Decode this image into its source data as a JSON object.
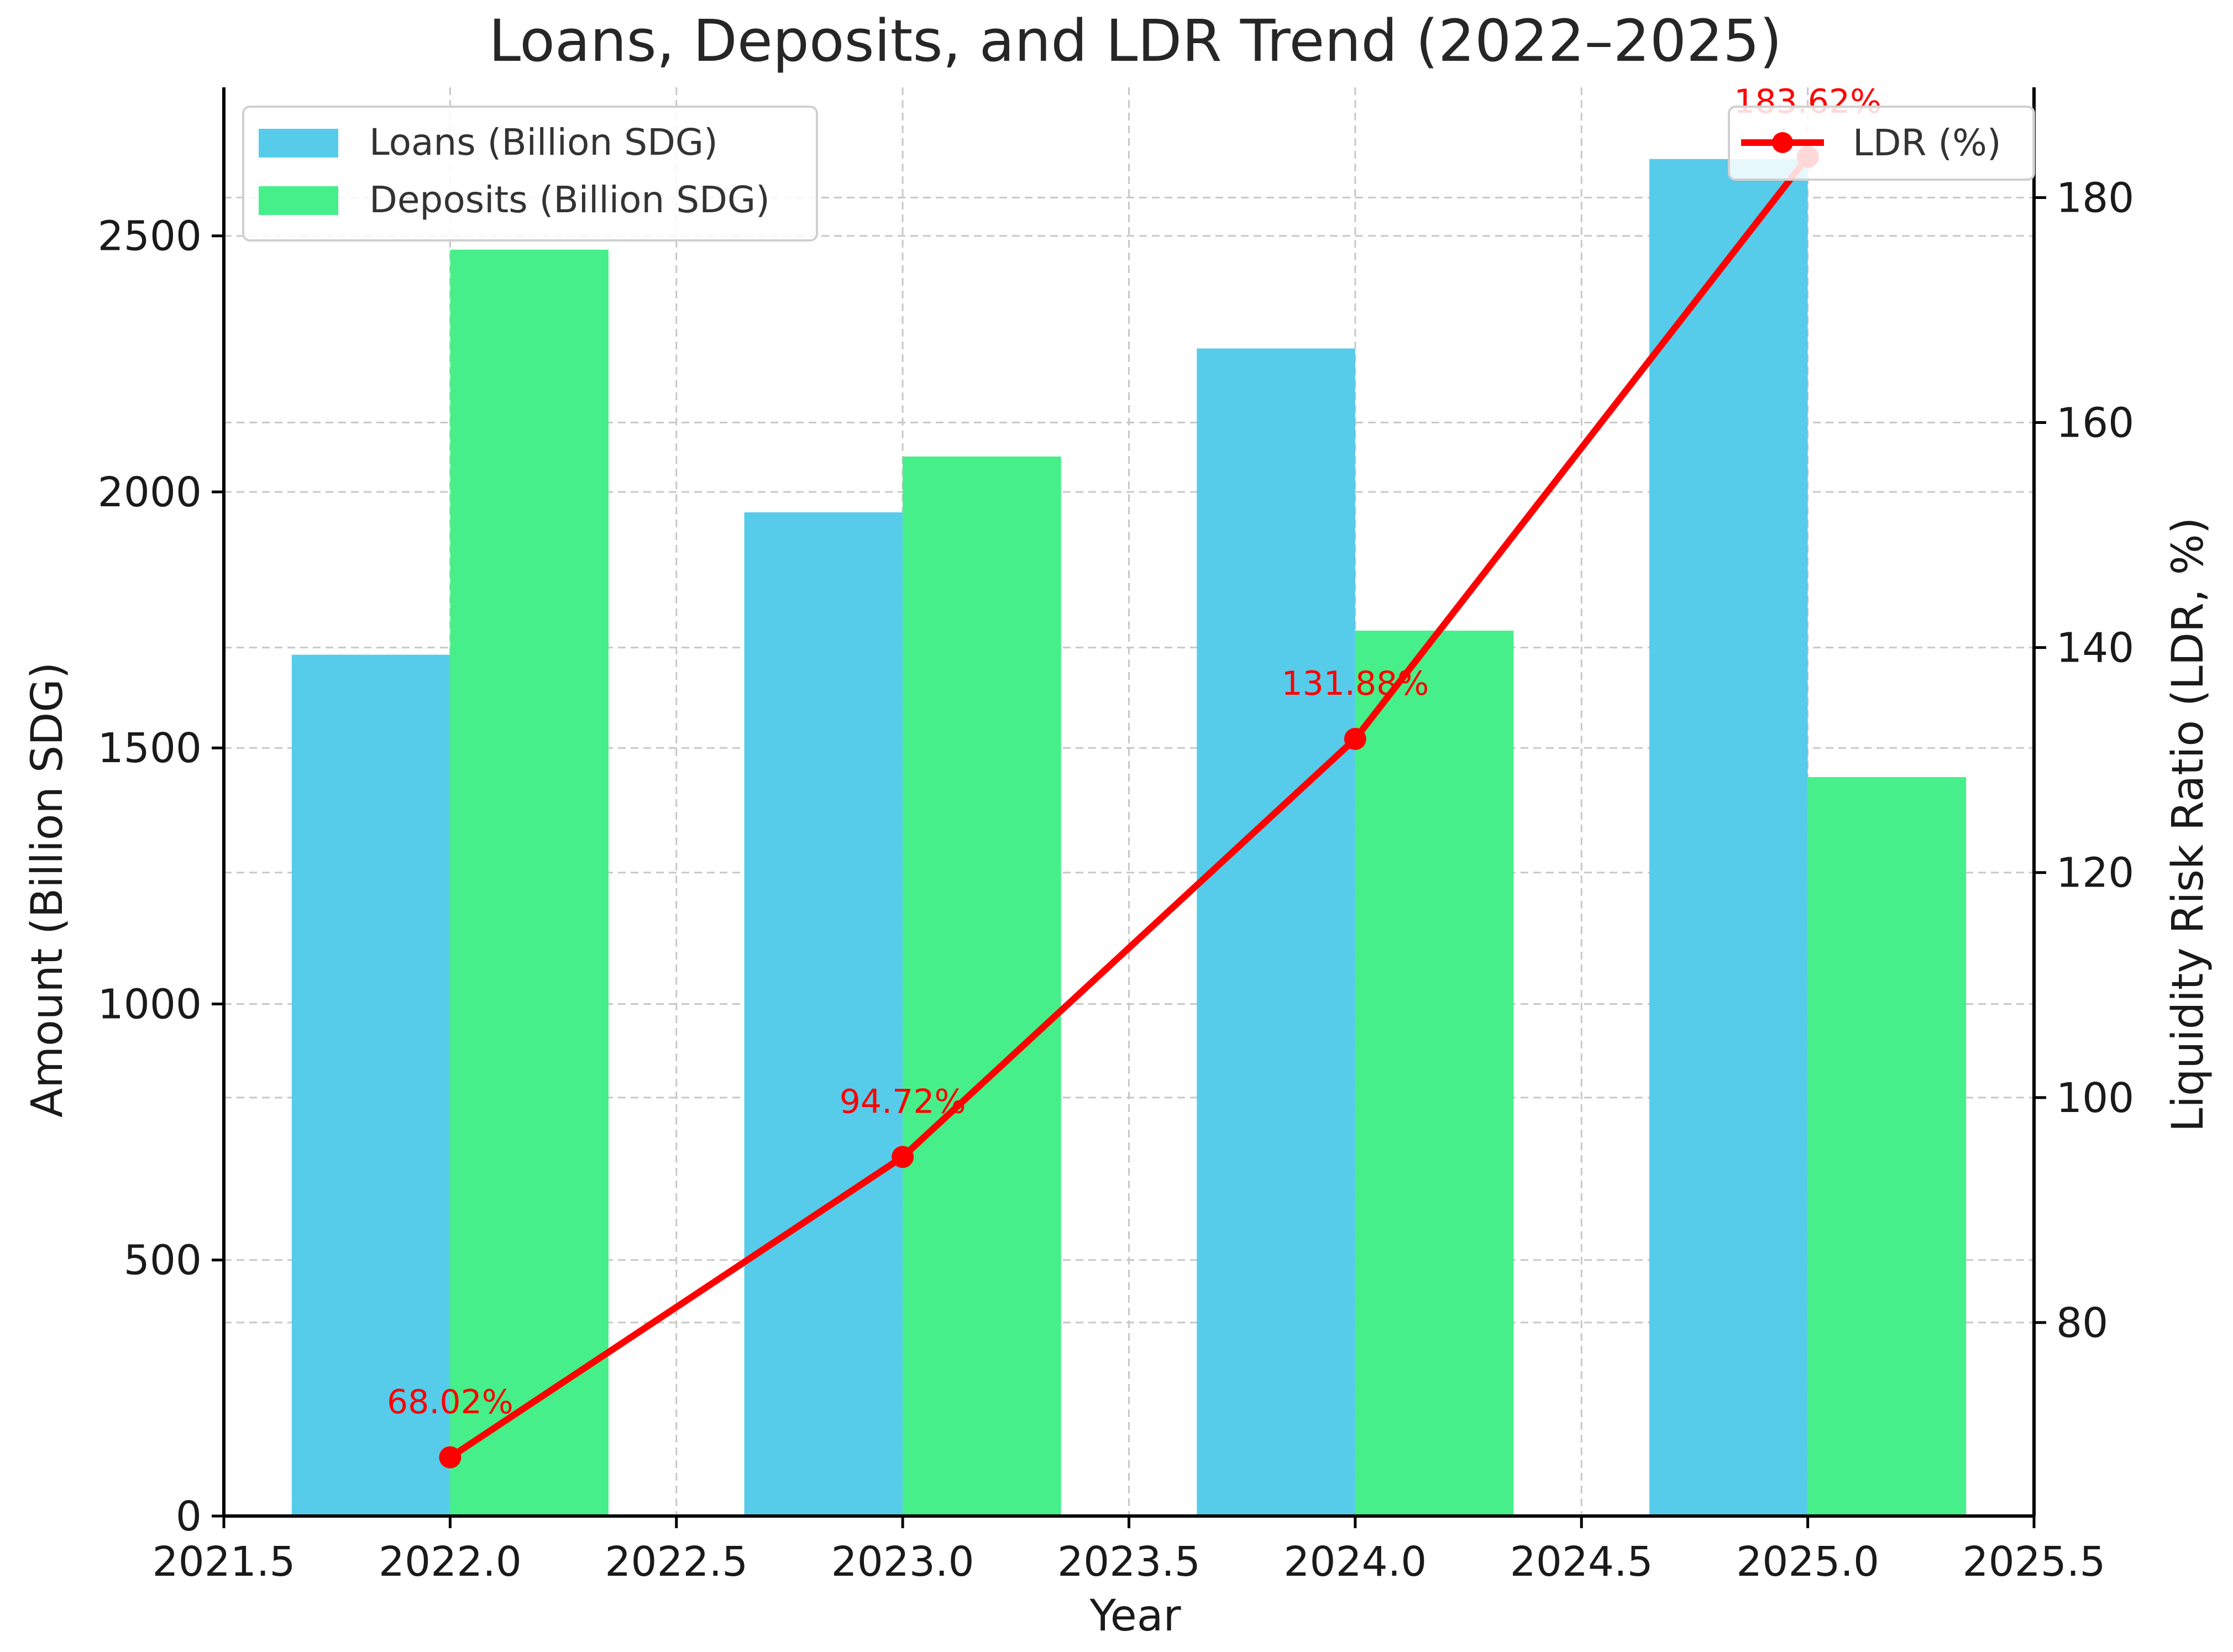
{
  "chart_data": {
    "type": "bar",
    "title": "Loans, Deposits, and LDR Trend (2022–2025)",
    "xlabel": "Year",
    "ylabel": "Amount (Billion SDG)",
    "y2label": "Liquidity Risk Ratio (LDR, %)",
    "x": [
      2022,
      2023,
      2024,
      2025
    ],
    "bar_width": 0.35,
    "xlim": [
      2021.5,
      2025.5
    ],
    "ylim": [
      0,
      2790
    ],
    "y2lim": [
      62.8,
      189.8
    ],
    "xticks": [
      "2021.5",
      "2022.0",
      "2022.5",
      "2023.0",
      "2023.5",
      "2024.0",
      "2024.5",
      "2025.0",
      "2025.5"
    ],
    "yticks": [
      "0",
      "500",
      "1000",
      "1500",
      "2000",
      "2500"
    ],
    "y2ticks": [
      "80",
      "100",
      "120",
      "140",
      "160",
      "180"
    ],
    "grid": true,
    "series": [
      {
        "name": "Loans (Billion SDG)",
        "type": "bar",
        "color": "#56ccea",
        "offset": -0.175,
        "values": [
          1682,
          1960,
          2280,
          2650
        ]
      },
      {
        "name": "Deposits (Billion SDG)",
        "type": "bar",
        "color": "#46ef8a",
        "offset": 0.175,
        "values": [
          2473,
          2069,
          1729,
          1443
        ]
      },
      {
        "name": "LDR (%)",
        "type": "line",
        "axis": "right",
        "color": "#ff0000",
        "values": [
          68.02,
          94.72,
          131.88,
          183.62
        ],
        "labels": [
          "68.02%",
          "94.72%",
          "131.88%",
          "183.62%"
        ]
      }
    ],
    "legend_left": "top-left",
    "legend_right": "top-right"
  }
}
